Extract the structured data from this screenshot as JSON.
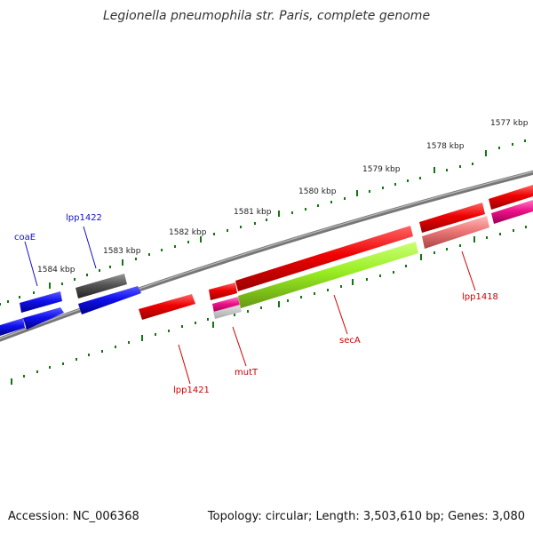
{
  "title": "Legionella pneumophila str. Paris, complete genome",
  "accession": "Accession: NC_006368",
  "topology": "Topology: circular; Length: 3,503,610 bp; Genes: 3,080",
  "ticks": [
    "1577 kbp",
    "1578 kbp",
    "1579 kbp",
    "1580 kbp",
    "1581 kbp",
    "1582 kbp",
    "1583 kbp",
    "1584 kbp"
  ],
  "genes": {
    "coaE": "coaE",
    "lpp1422": "lpp1422",
    "lpp1421": "lpp1421",
    "mutT": "mutT",
    "secA": "secA",
    "lpp1418": "lpp1418"
  },
  "colors": {
    "blue_gene": "#1010ee",
    "grey_gene": "#555555",
    "red_gene": "#ee0000",
    "green_gene": "#99ee22",
    "pink_gene": "#ee1188",
    "salmon_gene": "#ee7777",
    "backbone": "#777777",
    "tick_green": "#117711",
    "label_blue": "#1010cc",
    "label_red": "#cc0000"
  }
}
